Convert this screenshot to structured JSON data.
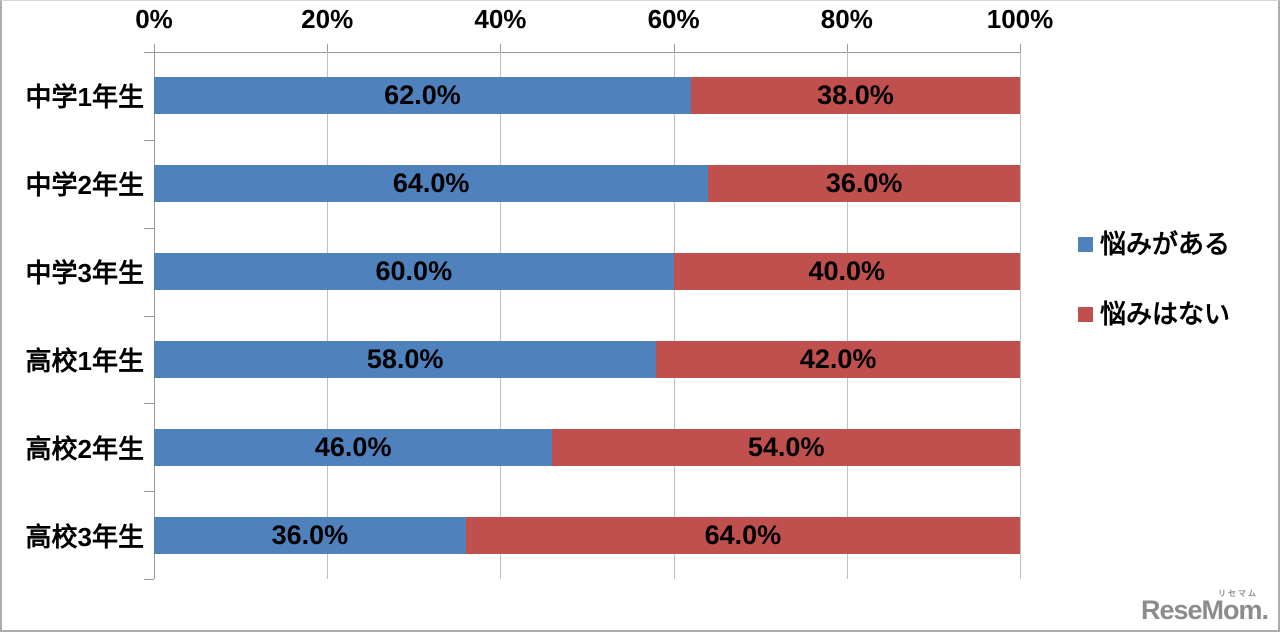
{
  "chart_data": {
    "type": "bar",
    "orientation": "horizontal",
    "stacked": true,
    "stacked_total": 100,
    "categories": [
      "中学1年生",
      "中学2年生",
      "中学3年生",
      "高校1年生",
      "高校2年生",
      "高校3年生"
    ],
    "series": [
      {
        "name": "悩みがある",
        "color": "#4f81bd",
        "values": [
          62.0,
          64.0,
          60.0,
          58.0,
          46.0,
          36.0
        ],
        "labels": [
          "62.0%",
          "64.0%",
          "60.0%",
          "58.0%",
          "46.0%",
          "36.0%"
        ]
      },
      {
        "name": "悩みはない",
        "color": "#c0504d",
        "values": [
          38.0,
          36.0,
          40.0,
          42.0,
          54.0,
          64.0
        ],
        "labels": [
          "38.0%",
          "36.0%",
          "40.0%",
          "42.0%",
          "54.0%",
          "64.0%"
        ]
      }
    ],
    "x_axis": {
      "position": "top",
      "min": 0,
      "max": 100,
      "tick_labels": [
        "0%",
        "20%",
        "40%",
        "60%",
        "80%",
        "100%"
      ]
    },
    "legend": {
      "position": "right",
      "items": [
        "悩みがある",
        "悩みはない"
      ]
    },
    "gridlines": true,
    "title": ""
  },
  "colors": {
    "gridline": "#c0c0c0",
    "axis": "#9a9a9a",
    "label_text": "#000000",
    "watermark": "#8c8c8c"
  },
  "watermark": {
    "text": "ReseMom.",
    "ruby": "リセマム"
  }
}
